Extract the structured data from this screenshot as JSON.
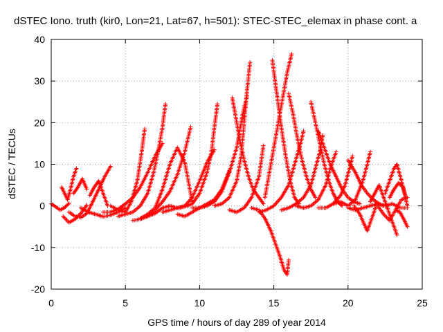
{
  "chart_data": {
    "type": "scatter",
    "title": "dSTEC Iono. truth (kir0, Lon=21, Lat=67, h=501): STEC-STEC_elemax in phase cont. a",
    "xlabel": "GPS time / hours of day 289 of year 2014",
    "ylabel": "dSTEC  / TECUs",
    "xlim": [
      0,
      25
    ],
    "ylim": [
      -20,
      40
    ],
    "xticks": [
      "0",
      "5",
      "10",
      "15",
      "20",
      "25"
    ],
    "yticks": [
      "-20",
      "-10",
      "0",
      "10",
      "20",
      "30",
      "40"
    ],
    "grid": true,
    "marker": "+",
    "color": "#ff0000",
    "series": [
      {
        "x": [
          0.0,
          0.3,
          0.6,
          0.9,
          1.2
        ],
        "y": [
          0.5,
          -0.2,
          -1.0,
          -0.4,
          0.6
        ]
      },
      {
        "x": [
          0.7,
          0.9,
          1.1,
          1.3,
          1.5,
          1.7
        ],
        "y": [
          4.5,
          3.0,
          1.5,
          4.0,
          7.0,
          9.0
        ]
      },
      {
        "x": [
          0.8,
          1.2,
          1.6,
          2.0,
          2.4
        ],
        "y": [
          -2.5,
          -4.0,
          -3.2,
          -1.8,
          0.2
        ]
      },
      {
        "x": [
          1.2,
          1.6,
          2.0,
          2.4,
          2.8,
          3.2,
          3.6,
          4.0
        ],
        "y": [
          -1.5,
          -2.5,
          -2.8,
          -1.8,
          1.0,
          4.0,
          7.0,
          9.5
        ]
      },
      {
        "x": [
          1.5,
          1.8,
          2.1,
          2.4
        ],
        "y": [
          3.0,
          4.5,
          6.5,
          4.0
        ]
      },
      {
        "x": [
          2.6,
          2.9,
          3.2,
          3.5,
          3.8
        ],
        "y": [
          2.5,
          4.5,
          6.0,
          3.0,
          0.0
        ]
      },
      {
        "x": [
          2.0,
          2.5,
          3.0,
          3.5,
          4.0,
          4.5,
          5.0
        ],
        "y": [
          -0.5,
          -1.5,
          -2.0,
          -2.6,
          -2.2,
          -1.5,
          -0.5
        ]
      },
      {
        "x": [
          3.5,
          4.0,
          4.5,
          5.0,
          5.5,
          6.0,
          6.5,
          7.0,
          7.5
        ],
        "y": [
          -1.5,
          -1.5,
          -0.8,
          0.5,
          2.0,
          4.5,
          8.0,
          12.0,
          15.0
        ]
      },
      {
        "x": [
          4.0,
          4.5,
          5.0,
          5.4,
          5.8,
          6.1,
          6.3
        ],
        "y": [
          0.0,
          -1.0,
          -1.5,
          1.0,
          6.0,
          13.0,
          18.5
        ]
      },
      {
        "x": [
          4.5,
          5.0,
          5.5,
          6.0,
          6.5,
          6.9,
          7.2,
          7.5,
          7.7
        ],
        "y": [
          -2.5,
          -2.0,
          -1.5,
          0.0,
          3.0,
          8.0,
          13.0,
          19.0,
          24.5
        ]
      },
      {
        "x": [
          6.0,
          6.5,
          7.0,
          7.5,
          8.0,
          8.5,
          9.0,
          9.5
        ],
        "y": [
          -3.0,
          -2.0,
          -0.5,
          4.0,
          10.0,
          14.0,
          10.5,
          1.0
        ]
      },
      {
        "x": [
          5.5,
          6.0,
          6.5,
          7.0,
          7.5,
          8.0,
          8.5,
          9.0,
          9.4
        ],
        "y": [
          -3.5,
          -3.2,
          -2.5,
          -1.0,
          1.0,
          3.5,
          7.5,
          13.0,
          19.0
        ]
      },
      {
        "x": [
          6.5,
          7.0,
          7.5,
          8.0,
          8.5,
          9.0,
          9.5,
          10.0,
          10.5,
          11.0
        ],
        "y": [
          -2.5,
          -1.8,
          -0.5,
          0.0,
          -0.5,
          0.0,
          2.0,
          6.0,
          10.5,
          13.5
        ]
      },
      {
        "x": [
          7.5,
          8.0,
          8.5,
          9.0,
          9.5,
          10.0,
          10.5,
          10.8,
          11.0,
          11.2
        ],
        "y": [
          -1.5,
          -1.0,
          -0.5,
          -0.2,
          0.5,
          3.0,
          8.0,
          13.0,
          19.0,
          24.5
        ]
      },
      {
        "x": [
          8.5,
          9.0,
          9.5,
          10.0,
          10.5,
          11.0,
          11.5,
          12.0
        ],
        "y": [
          -2.0,
          -2.5,
          -1.5,
          -0.5,
          0.5,
          1.5,
          4.0,
          8.5
        ]
      },
      {
        "x": [
          9.5,
          10.0,
          10.5,
          11.0,
          11.5,
          12.0,
          12.5,
          12.9,
          13.2
        ],
        "y": [
          -0.5,
          -0.5,
          0.0,
          1.0,
          3.5,
          8.0,
          14.0,
          22.0,
          26.5
        ]
      },
      {
        "x": [
          11.0,
          11.5,
          12.0,
          12.5,
          12.8,
          13.0,
          13.2,
          13.4
        ],
        "y": [
          0.0,
          0.5,
          2.0,
          6.0,
          12.0,
          20.0,
          28.0,
          34.5
        ]
      },
      {
        "x": [
          12.2,
          12.4,
          12.7,
          13.0,
          13.3,
          13.6,
          14.0,
          14.3
        ],
        "y": [
          26.0,
          22.0,
          16.0,
          11.0,
          7.0,
          4.0,
          2.0,
          0.5
        ]
      },
      {
        "x": [
          12.0,
          12.5,
          13.0,
          13.5,
          14.0,
          14.3
        ],
        "y": [
          -1.0,
          -1.5,
          -0.5,
          2.0,
          7.0,
          14.5
        ]
      },
      {
        "x": [
          13.5,
          14.0,
          14.4,
          14.8,
          15.1,
          15.4,
          15.7,
          15.9,
          16.0
        ],
        "y": [
          -0.5,
          -1.0,
          -3.0,
          -6.0,
          -9.0,
          -12.0,
          -15.5,
          -16.5,
          -13.0
        ]
      },
      {
        "x": [
          14.4,
          14.7,
          15.0,
          15.3,
          15.6,
          15.9,
          16.2
        ],
        "y": [
          2.0,
          8.0,
          14.0,
          20.0,
          26.0,
          32.0,
          36.5
        ]
      },
      {
        "x": [
          14.9,
          15.2,
          15.5,
          15.8,
          16.1,
          16.4,
          16.7
        ],
        "y": [
          35.0,
          27.0,
          19.0,
          12.0,
          6.0,
          2.0,
          0.5
        ]
      },
      {
        "x": [
          14.0,
          14.5,
          15.0,
          15.5,
          16.0,
          16.4,
          16.8,
          17.0
        ],
        "y": [
          -1.5,
          -1.0,
          0.0,
          2.0,
          5.0,
          10.0,
          15.0,
          18.0
        ]
      },
      {
        "x": [
          16.0,
          16.3,
          16.6,
          16.9,
          17.2,
          17.5,
          17.8
        ],
        "y": [
          27.0,
          22.0,
          16.0,
          11.0,
          7.0,
          4.0,
          2.0
        ]
      },
      {
        "x": [
          15.5,
          16.0,
          16.5,
          17.0,
          17.5,
          17.8,
          18.1,
          18.3
        ],
        "y": [
          -1.0,
          -0.5,
          0.5,
          2.0,
          5.0,
          9.0,
          13.0,
          17.0
        ]
      },
      {
        "x": [
          17.5,
          17.8,
          18.1,
          18.4,
          18.7,
          19.0,
          19.3,
          19.6
        ],
        "y": [
          25.0,
          20.0,
          15.0,
          10.0,
          6.0,
          3.0,
          1.0,
          0.0
        ]
      },
      {
        "x": [
          16.5,
          17.0,
          17.5,
          18.0,
          18.5,
          18.8,
          19.2
        ],
        "y": [
          0.0,
          -0.5,
          0.0,
          1.5,
          5.0,
          9.0,
          13.0
        ]
      },
      {
        "x": [
          18.0,
          18.5,
          19.0,
          19.5,
          19.8,
          20.1,
          20.3
        ],
        "y": [
          -0.5,
          -0.5,
          0.5,
          2.5,
          5.0,
          9.0,
          12.0
        ]
      },
      {
        "x": [
          18.0,
          18.4,
          18.8,
          19.2,
          19.6,
          20.0,
          20.4,
          20.8
        ],
        "y": [
          18.0,
          14.0,
          10.0,
          7.0,
          4.0,
          2.0,
          1.0,
          0.5
        ]
      },
      {
        "x": [
          19.0,
          19.5,
          20.0,
          20.5,
          21.0,
          21.3,
          21.5
        ],
        "y": [
          0.5,
          1.0,
          0.0,
          1.5,
          6.0,
          10.0,
          13.0
        ]
      },
      {
        "x": [
          20.0,
          20.5,
          20.9,
          21.3,
          21.7,
          22.1,
          22.4
        ],
        "y": [
          11.0,
          8.0,
          5.0,
          3.0,
          1.5,
          0.5,
          0.0
        ]
      },
      {
        "x": [
          20.4,
          20.8,
          21.1,
          21.3,
          21.6,
          21.9
        ],
        "y": [
          0.0,
          -2.0,
          -4.5,
          -6.0,
          -3.0,
          0.0
        ]
      },
      {
        "x": [
          21.5,
          21.8,
          22.1,
          22.4,
          22.7,
          23.0,
          23.3
        ],
        "y": [
          1.0,
          3.0,
          5.0,
          2.0,
          -1.0,
          -4.0,
          -7.0
        ]
      },
      {
        "x": [
          22.0,
          22.4,
          22.8,
          23.2,
          23.6,
          24.0
        ],
        "y": [
          0.0,
          -2.0,
          -3.5,
          -1.0,
          1.5,
          2.0
        ]
      },
      {
        "x": [
          22.5,
          22.8,
          23.1,
          23.3,
          23.6,
          23.9
        ],
        "y": [
          3.0,
          6.0,
          9.0,
          10.0,
          6.0,
          2.0
        ]
      },
      {
        "x": [
          22.8,
          23.1,
          23.4,
          23.7,
          24.0
        ],
        "y": [
          2.0,
          4.0,
          5.5,
          4.5,
          0.0
        ]
      },
      {
        "x": [
          23.2,
          23.5,
          23.8,
          24.0
        ],
        "y": [
          -1.0,
          -1.5,
          -3.5,
          -5.0
        ]
      },
      {
        "x": [
          20.0,
          20.5,
          21.0,
          21.5,
          22.0,
          22.5,
          23.0,
          23.5,
          24.0
        ],
        "y": [
          -0.5,
          -1.0,
          -0.5,
          0.0,
          0.5,
          0.0,
          0.5,
          -0.5,
          -0.5
        ]
      }
    ]
  }
}
